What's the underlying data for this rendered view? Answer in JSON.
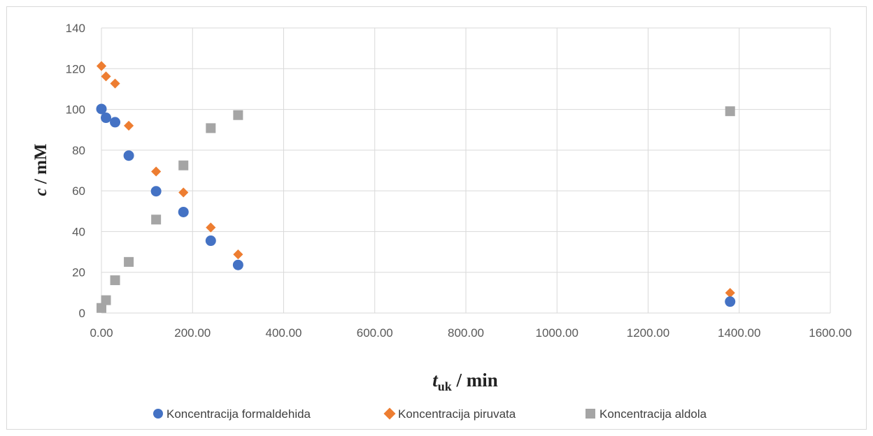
{
  "chart_data": {
    "type": "scatter",
    "xlabel": {
      "main": "t",
      "sub": "uk",
      "rest": " / min"
    },
    "ylabel": {
      "main": "c",
      "rest": " / mM"
    },
    "xlim": [
      0,
      1600
    ],
    "ylim": [
      0,
      140
    ],
    "x_ticks": [
      "0.00",
      "200.00",
      "400.00",
      "600.00",
      "800.00",
      "1000.00",
      "1200.00",
      "1400.00",
      "1600.00"
    ],
    "x_tick_values": [
      0,
      200,
      400,
      600,
      800,
      1000,
      1200,
      1400,
      1600
    ],
    "y_ticks": [
      "0",
      "20",
      "40",
      "60",
      "80",
      "100",
      "120",
      "140"
    ],
    "y_tick_values": [
      0,
      20,
      40,
      60,
      80,
      100,
      120,
      140
    ],
    "grid": true,
    "legend_position": "bottom",
    "series": [
      {
        "name": "Koncentracija formaldehida",
        "marker": "circle",
        "color": "#4472c4",
        "x": [
          0,
          10,
          30,
          60,
          120,
          180,
          240,
          300,
          1380
        ],
        "y": [
          100.2,
          95.9,
          93.7,
          77.3,
          59.8,
          49.6,
          35.5,
          23.6,
          5.6
        ]
      },
      {
        "name": "Koncentracija piruvata",
        "marker": "diamond",
        "color": "#ed7d31",
        "x": [
          0,
          10,
          30,
          60,
          120,
          180,
          240,
          300,
          1380
        ],
        "y": [
          121.3,
          116.2,
          112.7,
          92.0,
          69.5,
          59.2,
          42.0,
          28.8,
          9.9
        ]
      },
      {
        "name": "Koncentracija aldola",
        "marker": "square",
        "color": "#a5a5a5",
        "x": [
          0,
          10,
          30,
          60,
          120,
          180,
          240,
          300,
          1380
        ],
        "y": [
          2.5,
          6.3,
          16.1,
          25.1,
          45.9,
          72.5,
          90.8,
          97.2,
          99.1
        ]
      }
    ]
  }
}
